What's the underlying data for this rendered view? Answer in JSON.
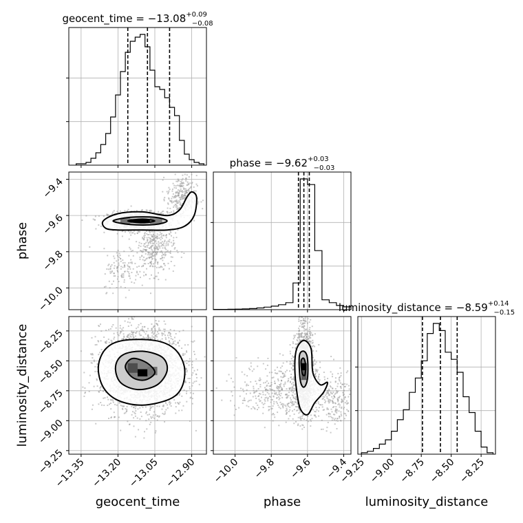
{
  "chart_data": {
    "type": "corner",
    "parameters": [
      "geocent_time",
      "phase",
      "luminosity_distance"
    ],
    "titles": {
      "geocent_time": {
        "prefix": "geocent_time = ",
        "median": "−13.08",
        "plus": "+0.09",
        "minus": "−0.08"
      },
      "phase": {
        "prefix": "phase = ",
        "median": "−9.62",
        "plus": "+0.03",
        "minus": "−0.03"
      },
      "luminosity_distance": {
        "prefix": "luminosity_distance = ",
        "median": "−8.59",
        "plus": "+0.14",
        "minus": "−0.15"
      }
    },
    "ranges": {
      "geocent_time": [
        -13.4,
        -12.84
      ],
      "phase": [
        -10.12,
        -9.36
      ],
      "luminosity_distance": [
        -9.28,
        -8.13
      ]
    },
    "ticks": {
      "geocent_time": [
        -13.35,
        -13.2,
        -13.05,
        -12.9
      ],
      "phase": [
        -10.0,
        -9.8,
        -9.6,
        -9.4
      ],
      "luminosity_distance": [
        -9.25,
        -9.0,
        -8.75,
        -8.5,
        -8.25
      ]
    },
    "tick_labels": {
      "geocent_time": [
        "−13.35",
        "−13.20",
        "−13.05",
        "−12.90"
      ],
      "phase": [
        "−10.0",
        "−9.8",
        "−9.6",
        "−9.4"
      ],
      "luminosity_distance": [
        "−9.25",
        "−9.00",
        "−8.75",
        "−8.50",
        "−8.25"
      ]
    },
    "quantiles": {
      "geocent_time": [
        -13.16,
        -13.08,
        -12.99
      ],
      "phase": [
        -9.65,
        -9.62,
        -9.59
      ],
      "luminosity_distance": [
        -8.74,
        -8.59,
        -8.45
      ]
    },
    "histograms": {
      "geocent_time": {
        "edges": [
          -13.37,
          -13.35,
          -13.33,
          -13.31,
          -13.29,
          -13.27,
          -13.25,
          -13.23,
          -13.21,
          -13.19,
          -13.17,
          -13.15,
          -13.13,
          -13.11,
          -13.09,
          -13.07,
          -13.05,
          -13.03,
          -13.01,
          -12.99,
          -12.97,
          -12.95,
          -12.93,
          -12.91,
          -12.89,
          -12.87,
          -12.85
        ],
        "counts": [
          0.01,
          0.01,
          0.02,
          0.05,
          0.09,
          0.15,
          0.23,
          0.35,
          0.51,
          0.68,
          0.82,
          0.9,
          0.93,
          0.95,
          0.86,
          0.69,
          0.57,
          0.55,
          0.49,
          0.42,
          0.36,
          0.18,
          0.08,
          0.04,
          0.02,
          0.01
        ]
      },
      "phase": {
        "edges": [
          -10.12,
          -10.08,
          -10.04,
          -10.0,
          -9.96,
          -9.92,
          -9.88,
          -9.84,
          -9.8,
          -9.76,
          -9.72,
          -9.68,
          -9.64,
          -9.6,
          -9.56,
          -9.52,
          -9.48,
          -9.44,
          -9.4,
          -9.36
        ],
        "counts": [
          0.002,
          0.002,
          0.003,
          0.004,
          0.006,
          0.008,
          0.012,
          0.018,
          0.025,
          0.035,
          0.05,
          0.19,
          0.93,
          0.89,
          0.42,
          0.07,
          0.05,
          0.03,
          0.02
        ]
      },
      "luminosity_distance": {
        "edges": [
          -9.25,
          -9.2,
          -9.15,
          -9.1,
          -9.05,
          -9.0,
          -8.95,
          -8.9,
          -8.85,
          -8.8,
          -8.75,
          -8.7,
          -8.65,
          -8.6,
          -8.55,
          -8.5,
          -8.45,
          -8.4,
          -8.35,
          -8.3,
          -8.25,
          -8.2,
          -8.15
        ],
        "counts": [
          0.01,
          0.02,
          0.04,
          0.07,
          0.1,
          0.16,
          0.24,
          0.31,
          0.43,
          0.53,
          0.65,
          0.84,
          0.91,
          0.86,
          0.71,
          0.66,
          0.57,
          0.4,
          0.29,
          0.16,
          0.05,
          0.01
        ]
      }
    },
    "pairs": [
      {
        "x": "geocent_time",
        "y": "phase",
        "clusters": [
          {
            "cx": -13.12,
            "cy": -9.63,
            "sx": 0.06,
            "sy": 0.025,
            "n": 1100
          },
          {
            "cx": -13.05,
            "cy": -9.78,
            "sx": 0.04,
            "sy": 0.07,
            "n": 350
          },
          {
            "cx": -12.94,
            "cy": -9.5,
            "sx": 0.03,
            "sy": 0.06,
            "n": 300
          },
          {
            "cx": -13.18,
            "cy": -9.9,
            "sx": 0.04,
            "sy": 0.06,
            "n": 120
          }
        ],
        "contours": [
          [
            [
              -13.26,
              -9.63
            ],
            [
              -13.2,
              -9.59
            ],
            [
              -13.1,
              -9.58
            ],
            [
              -13.0,
              -9.6
            ],
            [
              -12.95,
              -9.57
            ],
            [
              -12.92,
              -9.5
            ],
            [
              -12.9,
              -9.47
            ],
            [
              -12.88,
              -9.5
            ],
            [
              -12.89,
              -9.6
            ],
            [
              -12.93,
              -9.66
            ],
            [
              -13.0,
              -9.68
            ],
            [
              -13.1,
              -9.68
            ],
            [
              -13.2,
              -9.68
            ],
            [
              -13.25,
              -9.67
            ]
          ],
          [
            [
              -13.22,
              -9.63
            ],
            [
              -13.15,
              -9.61
            ],
            [
              -13.05,
              -9.61
            ],
            [
              -13.0,
              -9.63
            ],
            [
              -13.05,
              -9.65
            ],
            [
              -13.15,
              -9.65
            ]
          ],
          [
            [
              -13.16,
              -9.63
            ],
            [
              -13.1,
              -9.62
            ],
            [
              -13.05,
              -9.63
            ],
            [
              -13.1,
              -9.64
            ]
          ]
        ],
        "density_cells": [
          {
            "x0": -13.15,
            "x1": -13.07,
            "y0": -9.64,
            "y1": -9.62,
            "shade": 0.0
          },
          {
            "x0": -13.19,
            "x1": -13.15,
            "y0": -9.645,
            "y1": -9.615,
            "shade": 0.45
          },
          {
            "x0": -13.07,
            "x1": -13.02,
            "y0": -9.645,
            "y1": -9.615,
            "shade": 0.5
          }
        ]
      },
      {
        "x": "geocent_time",
        "y": "luminosity_distance",
        "clusters": [
          {
            "cx": -13.1,
            "cy": -8.57,
            "sx": 0.085,
            "sy": 0.17,
            "n": 2600
          }
        ],
        "contours": [
          [
            [
              -13.28,
              -8.55
            ],
            [
              -13.25,
              -8.4
            ],
            [
              -13.18,
              -8.33
            ],
            [
              -13.05,
              -8.33
            ],
            [
              -12.97,
              -8.4
            ],
            [
              -12.93,
              -8.55
            ],
            [
              -12.94,
              -8.72
            ],
            [
              -12.99,
              -8.82
            ],
            [
              -13.1,
              -8.87
            ],
            [
              -13.2,
              -8.83
            ],
            [
              -13.26,
              -8.72
            ]
          ],
          [
            [
              -13.21,
              -8.55
            ],
            [
              -13.18,
              -8.45
            ],
            [
              -13.1,
              -8.42
            ],
            [
              -13.02,
              -8.47
            ],
            [
              -13.0,
              -8.58
            ],
            [
              -13.04,
              -8.7
            ],
            [
              -13.12,
              -8.74
            ],
            [
              -13.19,
              -8.68
            ]
          ],
          [
            [
              -13.17,
              -8.55
            ],
            [
              -13.14,
              -8.48
            ],
            [
              -13.08,
              -8.52
            ],
            [
              -13.05,
              -8.6
            ],
            [
              -13.09,
              -8.66
            ],
            [
              -13.14,
              -8.64
            ]
          ]
        ],
        "density_cells": [
          {
            "x0": -13.12,
            "x1": -13.08,
            "y0": -8.63,
            "y1": -8.57,
            "shade": 0.0
          },
          {
            "x0": -13.16,
            "x1": -13.12,
            "y0": -8.6,
            "y1": -8.52,
            "shade": 0.3
          },
          {
            "x0": -13.08,
            "x1": -13.04,
            "y0": -8.62,
            "y1": -8.55,
            "shade": 0.45
          }
        ]
      },
      {
        "x": "phase",
        "y": "luminosity_distance",
        "clusters": [
          {
            "cx": -9.62,
            "cy": -8.57,
            "sx": 0.025,
            "sy": 0.17,
            "n": 1600
          },
          {
            "cx": -9.72,
            "cy": -8.75,
            "sx": 0.13,
            "sy": 0.12,
            "n": 500
          },
          {
            "cx": -9.45,
            "cy": -8.85,
            "sx": 0.05,
            "sy": 0.12,
            "n": 200
          }
        ],
        "contours": [
          [
            [
              -9.66,
              -8.4
            ],
            [
              -9.62,
              -8.33
            ],
            [
              -9.58,
              -8.4
            ],
            [
              -9.57,
              -8.6
            ],
            [
              -9.53,
              -8.7
            ],
            [
              -9.49,
              -8.68
            ],
            [
              -9.51,
              -8.76
            ],
            [
              -9.56,
              -8.85
            ],
            [
              -9.6,
              -8.95
            ],
            [
              -9.64,
              -8.9
            ],
            [
              -9.66,
              -8.75
            ],
            [
              -9.67,
              -8.55
            ]
          ],
          [
            [
              -9.645,
              -8.46
            ],
            [
              -9.62,
              -8.42
            ],
            [
              -9.6,
              -8.48
            ],
            [
              -9.6,
              -8.65
            ],
            [
              -9.62,
              -8.72
            ],
            [
              -9.64,
              -8.66
            ]
          ],
          [
            [
              -9.635,
              -8.5
            ],
            [
              -9.62,
              -8.48
            ],
            [
              -9.61,
              -8.54
            ],
            [
              -9.615,
              -8.62
            ],
            [
              -9.63,
              -8.6
            ]
          ]
        ],
        "density_cells": [
          {
            "x0": -9.635,
            "x1": -9.605,
            "y0": -8.58,
            "y1": -8.52,
            "shade": 0.0
          },
          {
            "x0": -9.635,
            "x1": -9.605,
            "y0": -8.66,
            "y1": -8.58,
            "shade": 0.35
          }
        ]
      }
    ]
  }
}
